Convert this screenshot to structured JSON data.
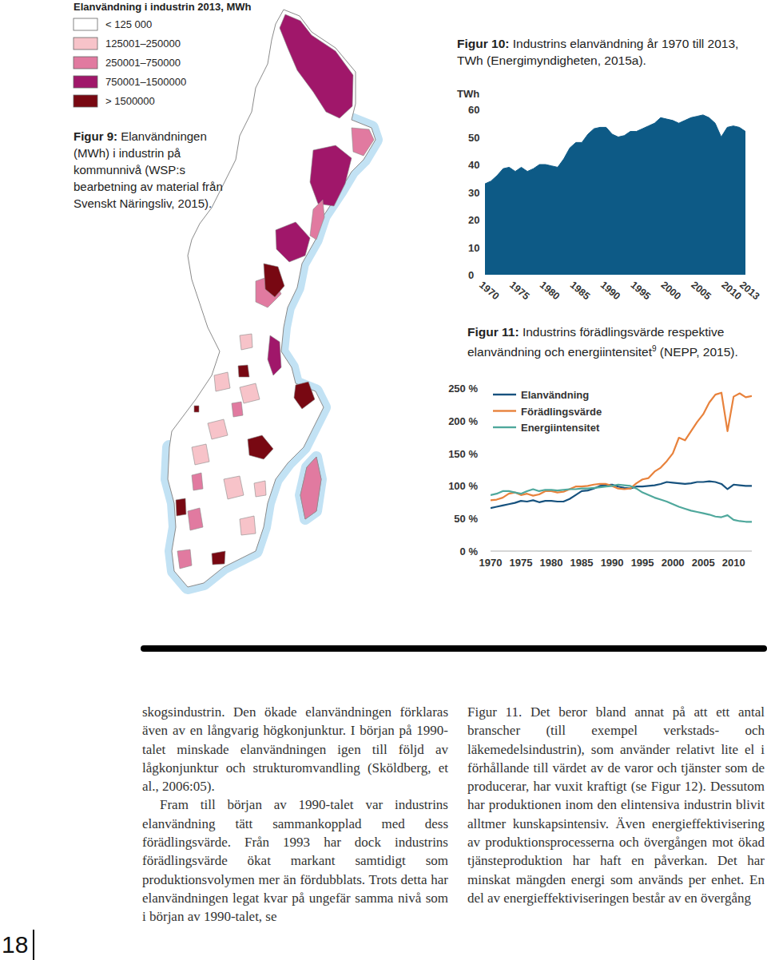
{
  "map": {
    "legend_title": "Elanvändning i industrin 2013, MWh",
    "classes": [
      {
        "label": "< 125 000",
        "color": "#ffffff"
      },
      {
        "label": "125001–250000",
        "color": "#f7c3c9"
      },
      {
        "label": "250001–750000",
        "color": "#e17aa0"
      },
      {
        "label": "750001–1500000",
        "color": "#a0176a"
      },
      {
        "label": "> 1500000",
        "color": "#780812"
      }
    ],
    "caption": "Figur 9: Elanvändningen (MWh) i industrin på kommunnivå (WSP:s bearbetning av material från Svenskt Näringsliv, 2015).",
    "regions": [
      3,
      3,
      2,
      2,
      3,
      2,
      4,
      3,
      1,
      4,
      4,
      1,
      1,
      4,
      2,
      1,
      1,
      4,
      2,
      1,
      2,
      4,
      1,
      2,
      1,
      4,
      2
    ]
  },
  "chart_data": [
    {
      "type": "area",
      "title": "Figur 10: Industrins elanvändning år 1970 till 2013, TWh (Energimyndigheten, 2015a).",
      "y_label": "TWh",
      "x": [
        1970,
        1971,
        1972,
        1973,
        1974,
        1975,
        1976,
        1977,
        1978,
        1979,
        1980,
        1981,
        1982,
        1983,
        1984,
        1985,
        1986,
        1987,
        1988,
        1989,
        1990,
        1991,
        1992,
        1993,
        1994,
        1995,
        1996,
        1997,
        1998,
        1999,
        2000,
        2001,
        2002,
        2003,
        2004,
        2005,
        2006,
        2007,
        2008,
        2009,
        2010,
        2011,
        2012,
        2013
      ],
      "values": [
        33,
        34,
        36,
        38.5,
        39,
        37.5,
        39,
        37.5,
        38.5,
        40,
        40,
        39.5,
        39,
        42,
        46,
        48,
        48,
        51,
        53,
        53.5,
        53.5,
        51,
        50,
        50.5,
        52,
        52,
        53,
        54,
        55,
        57,
        56.5,
        56,
        55,
        56,
        57,
        57.5,
        58,
        57,
        55,
        50,
        53.5,
        54,
        53.5,
        52
      ],
      "color": "#0d5a86",
      "xlim": [
        1970,
        2013
      ],
      "ylim": [
        0,
        60
      ],
      "yticks": [
        0,
        10,
        20,
        30,
        40,
        50,
        60
      ],
      "xticks": [
        1970,
        1975,
        1980,
        1985,
        1990,
        1995,
        2000,
        2005,
        2010,
        2013
      ]
    },
    {
      "type": "line",
      "title": "Figur 11: Industrins förädlingsvärde respektive elanvändning och energiintensitet",
      "title_footnote": "9",
      "source": "(NEPP, 2015).",
      "x": [
        1970,
        1971,
        1972,
        1973,
        1974,
        1975,
        1976,
        1977,
        1978,
        1979,
        1980,
        1981,
        1982,
        1983,
        1984,
        1985,
        1986,
        1987,
        1988,
        1989,
        1990,
        1991,
        1992,
        1993,
        1994,
        1995,
        1996,
        1997,
        1998,
        1999,
        2000,
        2001,
        2002,
        2003,
        2004,
        2005,
        2006,
        2007,
        2008,
        2009,
        2010,
        2011,
        2012,
        2013
      ],
      "series": [
        {
          "name": "Elanvändning",
          "color": "#17527e",
          "values": [
            66,
            68,
            70,
            72,
            74,
            77,
            76,
            78,
            75,
            77,
            77,
            76,
            76,
            80,
            86,
            92,
            93,
            96,
            100,
            101,
            102,
            99,
            97,
            96,
            99,
            99,
            100,
            101,
            103,
            106,
            105,
            104,
            103,
            104,
            106,
            106,
            107,
            106,
            103,
            95,
            102,
            101,
            100,
            100
          ]
        },
        {
          "name": "Förädlingsvärde",
          "color": "#e8823c",
          "values": [
            78,
            79,
            82,
            88,
            90,
            86,
            88,
            85,
            87,
            92,
            92,
            90,
            91,
            95,
            99,
            99,
            100,
            102,
            103,
            103,
            100,
            96,
            95,
            96,
            104,
            110,
            112,
            122,
            128,
            138,
            150,
            174,
            170,
            184,
            198,
            210,
            228,
            240,
            243,
            184,
            237,
            242,
            236,
            238
          ]
        },
        {
          "name": "Energiintensitet",
          "color": "#4fa89c",
          "values": [
            86,
            88,
            92,
            92,
            90,
            88,
            92,
            95,
            92,
            94,
            94,
            93,
            94,
            95,
            95,
            96,
            96,
            97,
            98,
            99,
            100,
            102,
            101,
            100,
            96,
            90,
            86,
            82,
            79,
            76,
            72,
            68,
            65,
            62,
            60,
            58,
            56,
            53,
            52,
            55,
            48,
            46,
            45,
            45
          ]
        }
      ],
      "xlim": [
        1970,
        2013
      ],
      "ylim": [
        0,
        250
      ],
      "yticks": [
        {
          "value": 0,
          "label": "0 %"
        },
        {
          "value": 50,
          "label": "50 %"
        },
        {
          "value": 100,
          "label": "100 %"
        },
        {
          "value": 150,
          "label": "150 %"
        },
        {
          "value": 200,
          "label": "200 %"
        },
        {
          "value": 250,
          "label": "250 %"
        }
      ],
      "xticks": [
        1970,
        1975,
        1980,
        1985,
        1990,
        1995,
        2000,
        2005,
        2010
      ],
      "legend": "top-left"
    }
  ],
  "body": {
    "left": [
      "skogsindustrin. Den ökade elanvändningen förklaras även av en långvarig högkonjunktur. I början på 1990-talet minskade elanvändningen igen till följd av lågkonjunktur och strukturomvandling (Sköldberg, et al., 2006:05).",
      "Fram till början av 1990-talet var industrins elanvändning tätt sammankopplad med dess förädlingsvärde. Från 1993 har dock industrins förädlingsvärde ökat markant samtidigt som produktionsvolymen mer än fördubblats. Trots detta har elanvändningen legat kvar på ungefär samma nivå som i början av 1990-talet, se"
    ],
    "right": [
      "Figur 11. Det beror bland annat på att ett antal branscher (till exempel verkstads- och läkemedelsindustrin), som använder relativt lite el i förhållande till värdet av de varor och tjänster som de producerar, har vuxit kraftigt (se Figur 12). Dessutom har produktionen inom den elintensiva industrin blivit alltmer kunskapsintensiv. Även energieffektivisering av produktionsprocesserna och övergången mot ökad tjänsteproduktion har haft en påverkan. Det har minskat mängden energi som används per enhet. En del av energieffektiviseringen består av en övergång"
    ]
  },
  "page_number": "18"
}
